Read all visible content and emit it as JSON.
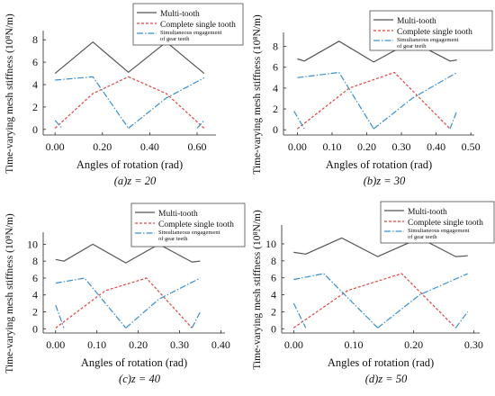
{
  "shared": {
    "ylabel": "Time-varying mesh stiffness (10⁸N/m)",
    "xlabel": "Angles of rotation (rad)",
    "legend": [
      "Multi-tooth",
      "Complete single tooth",
      "Simultaneous engagement of gear teeth"
    ],
    "colors": {
      "multi": "#555555",
      "single": "#e0443e",
      "simul": "#3a8fd0"
    }
  },
  "chart_data": [
    {
      "type": "line",
      "caption": "(a)z = 20",
      "xlim": [
        -0.05,
        0.68
      ],
      "ylim": [
        -0.5,
        8.5
      ],
      "xticks": [
        "0.00",
        "0.20",
        "0.40",
        "0.60"
      ],
      "xtick_values": [
        0,
        0.2,
        0.4,
        0.6
      ],
      "yticks": [
        "0",
        "2",
        "4",
        "6",
        "8"
      ],
      "ytick_values": [
        0,
        2,
        4,
        6,
        8
      ],
      "series": [
        {
          "name": "Multi-tooth",
          "x": [
            0,
            0.16,
            0.31,
            0.47,
            0.63
          ],
          "y": [
            5.0,
            7.8,
            5.1,
            7.8,
            5.0
          ]
        },
        {
          "name": "Complete single tooth",
          "x": [
            0,
            0.16,
            0.31
          ],
          "y": [
            0.1,
            3.2,
            4.7
          ]
        },
        {
          "name": "Complete single tooth",
          "x": [
            0.31,
            0.47,
            0.63
          ],
          "y": [
            4.7,
            3.2,
            0.1
          ]
        },
        {
          "name": "Simultaneous engagement of gear teeth",
          "x": [
            0,
            0.16,
            0.31
          ],
          "y": [
            4.4,
            4.7,
            0.1
          ]
        },
        {
          "name": "Simultaneous engagement of gear teeth",
          "x": [
            0.31,
            0.47,
            0.63
          ],
          "y": [
            0.1,
            2.8,
            4.6
          ]
        },
        {
          "name": "Simultaneous engagement of gear teeth",
          "x": [
            0,
            0.03
          ],
          "y": [
            0.8,
            0.1
          ]
        },
        {
          "name": "Simultaneous engagement of gear teeth",
          "x": [
            0.6,
            0.63
          ],
          "y": [
            0.1,
            0.8
          ]
        }
      ]
    },
    {
      "type": "line",
      "caption": "(b)z = 30",
      "xlim": [
        -0.04,
        0.51
      ],
      "ylim": [
        -0.5,
        9.0
      ],
      "xticks": [
        "0.00",
        "0.10",
        "0.20",
        "0.30",
        "0.40",
        "0.50"
      ],
      "xtick_values": [
        0,
        0.1,
        0.2,
        0.3,
        0.4,
        0.5
      ],
      "yticks": [
        "0",
        "2",
        "4",
        "6",
        "8"
      ],
      "ytick_values": [
        0,
        2,
        4,
        6,
        8
      ],
      "series": [
        {
          "name": "Multi-tooth",
          "x": [
            0,
            0.02,
            0.12,
            0.22,
            0.33,
            0.44,
            0.46
          ],
          "y": [
            6.8,
            6.6,
            8.5,
            6.5,
            8.5,
            6.6,
            6.7
          ]
        },
        {
          "name": "Complete single tooth",
          "x": [
            0,
            0.15,
            0.28,
            0.44
          ],
          "y": [
            0.1,
            4.0,
            5.5,
            0.1
          ]
        },
        {
          "name": "Simultaneous engagement of gear teeth",
          "x": [
            0,
            0.12,
            0.22
          ],
          "y": [
            5.0,
            5.5,
            0.1
          ]
        },
        {
          "name": "Simultaneous engagement of gear teeth",
          "x": [
            0.22,
            0.33,
            0.46
          ],
          "y": [
            0.1,
            3.0,
            5.5
          ]
        },
        {
          "name": "Simultaneous engagement of gear teeth",
          "x": [
            -0.01,
            0.02
          ],
          "y": [
            1.8,
            0.1
          ]
        },
        {
          "name": "Simultaneous engagement of gear teeth",
          "x": [
            0.44,
            0.46
          ],
          "y": [
            0.1,
            1.8
          ]
        }
      ]
    },
    {
      "type": "line",
      "caption": "(c)z = 40",
      "xlim": [
        -0.03,
        0.41
      ],
      "ylim": [
        -0.5,
        11.0
      ],
      "xticks": [
        "0.00",
        "0.10",
        "0.20",
        "0.30",
        "0.40"
      ],
      "xtick_values": [
        0,
        0.1,
        0.2,
        0.3,
        0.4
      ],
      "yticks": [
        "0",
        "2",
        "4",
        "6",
        "8",
        "10"
      ],
      "ytick_values": [
        0,
        2,
        4,
        6,
        8,
        10
      ],
      "series": [
        {
          "name": "Multi-tooth",
          "x": [
            0,
            0.02,
            0.09,
            0.17,
            0.25,
            0.33,
            0.35
          ],
          "y": [
            8.2,
            8.0,
            10.0,
            7.8,
            10.0,
            7.9,
            8.0
          ]
        },
        {
          "name": "Complete single tooth",
          "x": [
            0,
            0.12,
            0.22,
            0.33
          ],
          "y": [
            0.1,
            4.5,
            6.0,
            0.1
          ]
        },
        {
          "name": "Simultaneous engagement of gear teeth",
          "x": [
            0,
            0.07,
            0.17
          ],
          "y": [
            5.4,
            6.0,
            0.1
          ]
        },
        {
          "name": "Simultaneous engagement of gear teeth",
          "x": [
            0.17,
            0.25,
            0.35
          ],
          "y": [
            0.1,
            3.5,
            6.0
          ]
        },
        {
          "name": "Simultaneous engagement of gear teeth",
          "x": [
            0,
            0.02
          ],
          "y": [
            2.8,
            0.1
          ]
        },
        {
          "name": "Simultaneous engagement of gear teeth",
          "x": [
            0.33,
            0.35
          ],
          "y": [
            0.1,
            2.0
          ]
        }
      ]
    },
    {
      "type": "line",
      "caption": "(d)z = 50",
      "xlim": [
        -0.02,
        0.31
      ],
      "ylim": [
        -0.5,
        11.8
      ],
      "xticks": [
        "0.00",
        "0.10",
        "0.20",
        "0.30"
      ],
      "xtick_values": [
        0,
        0.1,
        0.2,
        0.3
      ],
      "yticks": [
        "0",
        "2",
        "4",
        "6",
        "8",
        "10"
      ],
      "ytick_values": [
        0,
        2,
        4,
        6,
        8,
        10
      ],
      "series": [
        {
          "name": "Multi-tooth",
          "x": [
            0,
            0.02,
            0.08,
            0.14,
            0.21,
            0.27,
            0.29
          ],
          "y": [
            9.0,
            8.8,
            10.7,
            8.5,
            10.7,
            8.5,
            8.6
          ]
        },
        {
          "name": "Complete single tooth",
          "x": [
            0,
            0.09,
            0.18,
            0.27
          ],
          "y": [
            0.1,
            4.5,
            6.5,
            0.1
          ]
        },
        {
          "name": "Simultaneous engagement of gear teeth",
          "x": [
            0,
            0.05,
            0.14
          ],
          "y": [
            5.8,
            6.5,
            0.1
          ]
        },
        {
          "name": "Simultaneous engagement of gear teeth",
          "x": [
            0.14,
            0.21,
            0.29
          ],
          "y": [
            0.1,
            4.0,
            6.5
          ]
        },
        {
          "name": "Simultaneous engagement of gear teeth",
          "x": [
            0,
            0.02
          ],
          "y": [
            3.0,
            0.1
          ]
        },
        {
          "name": "Simultaneous engagement of gear teeth",
          "x": [
            0.27,
            0.29
          ],
          "y": [
            0.1,
            2.0
          ]
        }
      ]
    }
  ]
}
